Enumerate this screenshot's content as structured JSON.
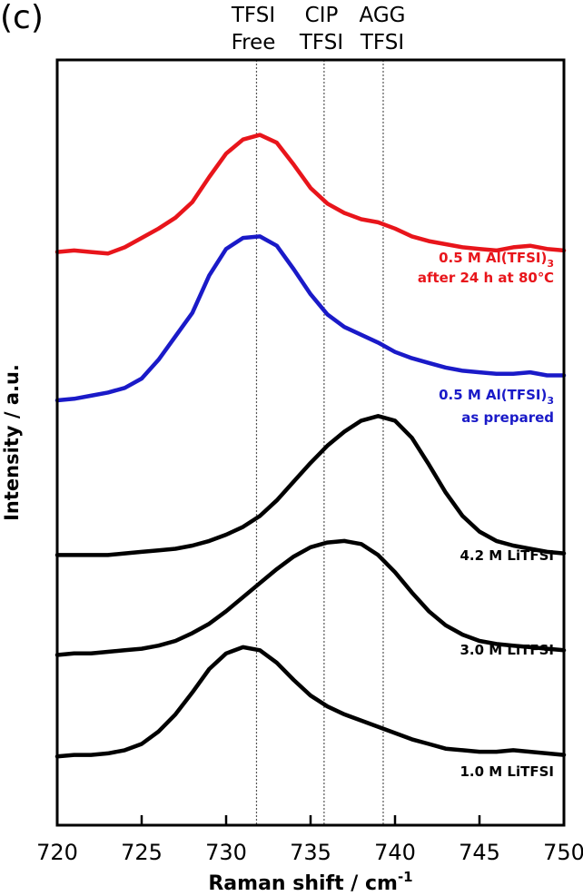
{
  "panel_label": "(c)",
  "peak_labels": [
    {
      "line1": "TFSI",
      "line2": "Free"
    },
    {
      "line1": "CIP",
      "line2": "TFSI"
    },
    {
      "line1": "AGG",
      "line2": "TFSI"
    }
  ],
  "chart_data": {
    "type": "line",
    "title": "",
    "xlabel": "Raman shift / cm",
    "xlabel_superscript": "-1",
    "ylabel": "Intensity / a.u.",
    "xlim": [
      720,
      750
    ],
    "ylim": [
      0,
      4.9
    ],
    "xticks": [
      720,
      725,
      730,
      735,
      740,
      745,
      750
    ],
    "grid": false,
    "reference_lines": [
      731.8,
      735.8,
      739.3
    ],
    "series": [
      {
        "label": "0.5 M Al(TFSI)",
        "label_subscript": "3",
        "label_line2": "after 24 h at 80℃",
        "color": "#e8151b",
        "x": [
          720,
          721,
          722,
          723,
          724,
          725,
          726,
          727,
          728,
          729,
          730,
          731,
          732,
          733,
          734,
          735,
          736,
          737,
          738,
          739,
          740,
          741,
          742,
          743,
          744,
          745,
          746,
          747,
          748,
          749,
          750
        ],
        "y": [
          3.67,
          3.68,
          3.67,
          3.66,
          3.7,
          3.76,
          3.82,
          3.89,
          3.99,
          4.15,
          4.3,
          4.39,
          4.42,
          4.37,
          4.23,
          4.08,
          3.98,
          3.92,
          3.88,
          3.86,
          3.82,
          3.77,
          3.74,
          3.72,
          3.7,
          3.69,
          3.68,
          3.7,
          3.71,
          3.69,
          3.68
        ]
      },
      {
        "label": "0.5 M Al(TFSI)",
        "label_subscript": "3",
        "label_line2": "as prepared",
        "color": "#1a1ac8",
        "x": [
          720,
          721,
          722,
          723,
          724,
          725,
          726,
          727,
          728,
          729,
          730,
          731,
          732,
          733,
          734,
          735,
          736,
          737,
          738,
          739,
          740,
          741,
          742,
          743,
          744,
          745,
          746,
          747,
          748,
          749,
          750
        ],
        "y": [
          2.72,
          2.73,
          2.75,
          2.77,
          2.8,
          2.86,
          2.98,
          3.13,
          3.28,
          3.52,
          3.69,
          3.76,
          3.77,
          3.71,
          3.56,
          3.4,
          3.27,
          3.19,
          3.14,
          3.09,
          3.03,
          2.99,
          2.96,
          2.93,
          2.91,
          2.9,
          2.89,
          2.89,
          2.9,
          2.88,
          2.88
        ]
      },
      {
        "label": "4.2 M LiTFSI",
        "color": "#000000",
        "x": [
          720,
          721,
          722,
          723,
          724,
          725,
          726,
          727,
          728,
          729,
          730,
          731,
          732,
          733,
          734,
          735,
          736,
          737,
          738,
          739,
          740,
          741,
          742,
          743,
          744,
          745,
          746,
          747,
          748,
          749,
          750
        ],
        "y": [
          1.73,
          1.73,
          1.73,
          1.73,
          1.74,
          1.75,
          1.76,
          1.77,
          1.79,
          1.82,
          1.86,
          1.91,
          1.98,
          2.08,
          2.2,
          2.32,
          2.43,
          2.52,
          2.59,
          2.62,
          2.59,
          2.48,
          2.31,
          2.13,
          1.98,
          1.88,
          1.82,
          1.79,
          1.77,
          1.75,
          1.74
        ]
      },
      {
        "label": "3.0 M LiTFSI",
        "color": "#000000",
        "x": [
          720,
          721,
          722,
          723,
          724,
          725,
          726,
          727,
          728,
          729,
          730,
          731,
          732,
          733,
          734,
          735,
          736,
          737,
          738,
          739,
          740,
          741,
          742,
          743,
          744,
          745,
          746,
          747,
          748,
          749,
          750
        ],
        "y": [
          1.09,
          1.1,
          1.1,
          1.11,
          1.12,
          1.13,
          1.15,
          1.18,
          1.23,
          1.29,
          1.37,
          1.46,
          1.55,
          1.64,
          1.72,
          1.78,
          1.81,
          1.82,
          1.8,
          1.73,
          1.62,
          1.49,
          1.37,
          1.28,
          1.22,
          1.18,
          1.16,
          1.15,
          1.14,
          1.13,
          1.12
        ]
      },
      {
        "label": "1.0 M LiTFSI",
        "color": "#000000",
        "x": [
          720,
          721,
          722,
          723,
          724,
          725,
          726,
          727,
          728,
          729,
          730,
          731,
          732,
          733,
          734,
          735,
          736,
          737,
          738,
          739,
          740,
          741,
          742,
          743,
          744,
          745,
          746,
          747,
          748,
          749,
          750
        ],
        "y": [
          0.44,
          0.45,
          0.45,
          0.46,
          0.48,
          0.52,
          0.6,
          0.71,
          0.85,
          1.0,
          1.1,
          1.14,
          1.12,
          1.04,
          0.93,
          0.83,
          0.76,
          0.71,
          0.67,
          0.63,
          0.59,
          0.55,
          0.52,
          0.49,
          0.48,
          0.47,
          0.47,
          0.48,
          0.47,
          0.46,
          0.45
        ]
      }
    ]
  }
}
